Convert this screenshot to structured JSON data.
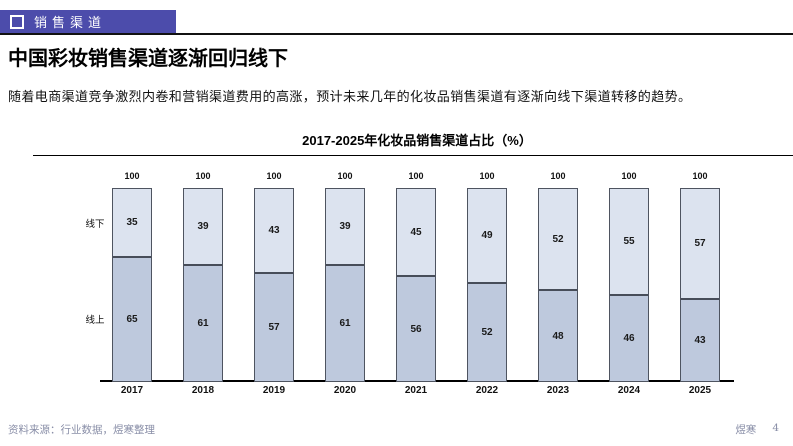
{
  "banner": {
    "label": "销售渠道"
  },
  "heading": {
    "title": "中国彩妆销售渠道逐渐回归线下"
  },
  "body_text": {
    "paragraph": "随着电商渠道竞争激烈内卷和营销渠道费用的高涨，预计未来几年的化妆品销售渠道有逐渐向线下渠道转移的趋势。"
  },
  "chart_data": {
    "type": "bar",
    "stacked": true,
    "title": "2017-2025年化妆品销售渠道占比（%）",
    "categories": [
      "2017",
      "2018",
      "2019",
      "2020",
      "2021",
      "2022",
      "2023",
      "2024",
      "2025"
    ],
    "series": [
      {
        "name": "线下",
        "position": "top",
        "color": "#dce3ef",
        "values": [
          35,
          39,
          43,
          39,
          45,
          49,
          52,
          55,
          57
        ]
      },
      {
        "name": "线上",
        "position": "bottom",
        "color": "#bec9dd",
        "values": [
          65,
          61,
          57,
          61,
          56,
          52,
          48,
          46,
          43
        ]
      }
    ],
    "totals": [
      100,
      100,
      100,
      100,
      100,
      100,
      100,
      100,
      100
    ],
    "ylim": [
      0,
      100
    ],
    "ylabel": "",
    "xlabel": "",
    "grid": false,
    "legend_position": "left-of-first-bar",
    "bar_border_color": "#4e5460",
    "divider_color": "#474d59"
  },
  "footer": {
    "source": "资料来源：行业数据，煜寒整理",
    "brand": "煜寒",
    "page_number": "4"
  }
}
